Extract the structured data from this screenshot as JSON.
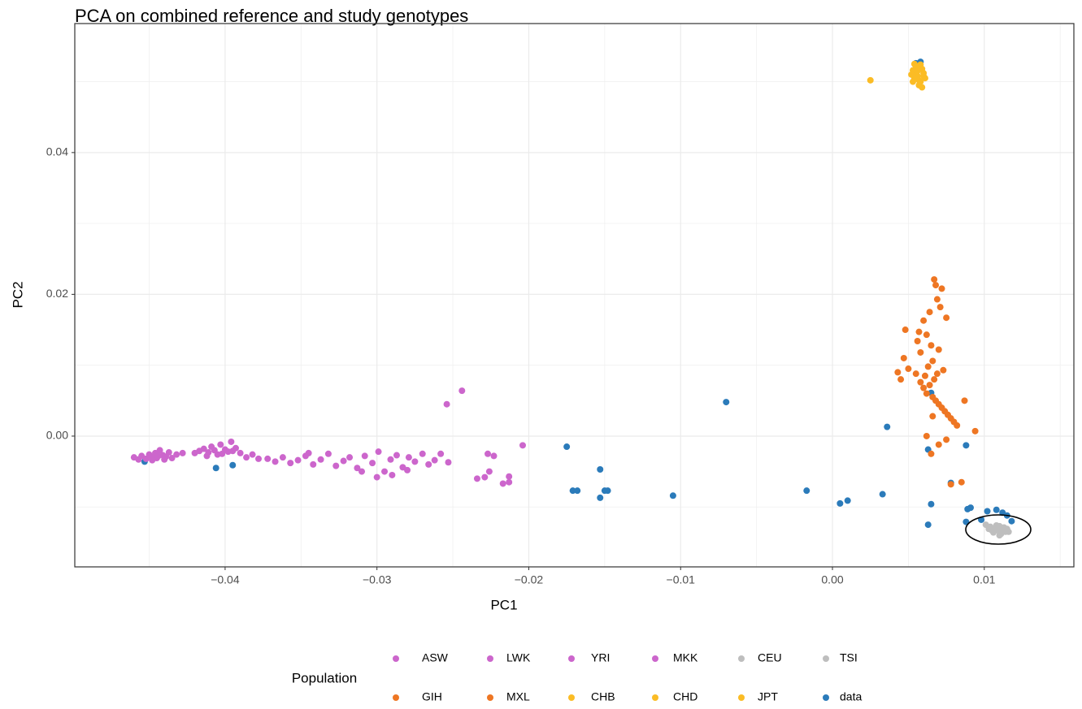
{
  "chart_data": {
    "type": "scatter",
    "title": "PCA on combined reference and study genotypes",
    "x_label": "PC1",
    "y_label": "PC2",
    "legend_title": "Population",
    "xlim": [
      -0.0499,
      0.0159
    ],
    "ylim": [
      -0.01845,
      0.0582
    ],
    "xticks": [
      {
        "value": -0.04,
        "label": "−0.04"
      },
      {
        "value": -0.03,
        "label": "−0.03"
      },
      {
        "value": -0.02,
        "label": "−0.02"
      },
      {
        "value": -0.01,
        "label": "−0.01"
      },
      {
        "value": 0,
        "label": "0.00"
      },
      0.01
    ],
    "yticks": [
      {
        "value": 0,
        "label": "0.00"
      },
      0.02,
      0.04
    ],
    "x_minor_ticks": [
      -0.045,
      -0.035,
      -0.025,
      -0.015,
      -0.005,
      0.005,
      0.015
    ],
    "y_minor_ticks": [
      -0.01,
      0.01,
      0.03,
      0.05
    ],
    "grid": true,
    "legend_position": "bottom",
    "series": [
      {
        "name": "ASW",
        "color": "#cc66cc",
        "x": [
          -0.0254,
          -0.0244,
          -0.0227,
          -0.0223,
          -0.0234,
          -0.0229,
          -0.0217,
          -0.0204,
          -0.0226,
          -0.0213,
          -0.0213,
          -0.0253,
          -0.0258
        ],
        "y": [
          0.0045,
          0.0064,
          -0.0025,
          -0.0028,
          -0.006,
          -0.0058,
          -0.0067,
          -0.0013,
          -0.005,
          -0.0057,
          -0.0065,
          -0.0037,
          -0.0025
        ]
      },
      {
        "name": "LWK",
        "color": "#cc66cc",
        "x": [
          -0.046,
          -0.0457,
          -0.0455,
          -0.0452,
          -0.045,
          -0.0448,
          -0.0446,
          -0.0445,
          -0.0443,
          -0.0441,
          -0.0439,
          -0.0437,
          -0.0435,
          -0.0432,
          -0.0428,
          -0.0448,
          -0.0444,
          -0.044
        ],
        "y": [
          -0.003,
          -0.0033,
          -0.0028,
          -0.0032,
          -0.0026,
          -0.003,
          -0.0024,
          -0.0031,
          -0.002,
          -0.0027,
          -0.0029,
          -0.0023,
          -0.0031,
          -0.0026,
          -0.0024,
          -0.0034,
          -0.0028,
          -0.0033
        ]
      },
      {
        "name": "YRI",
        "color": "#cc66cc",
        "x": [
          -0.042,
          -0.0417,
          -0.0414,
          -0.0411,
          -0.0409,
          -0.0407,
          -0.0405,
          -0.0403,
          -0.04,
          -0.0398,
          -0.0396,
          -0.0393,
          -0.039,
          -0.0386,
          -0.0382,
          -0.0378,
          -0.0412,
          -0.0402,
          -0.0395
        ],
        "y": [
          -0.0024,
          -0.0021,
          -0.0018,
          -0.0023,
          -0.0015,
          -0.002,
          -0.0026,
          -0.0012,
          -0.0019,
          -0.0022,
          -0.0008,
          -0.0017,
          -0.0024,
          -0.003,
          -0.0026,
          -0.0032,
          -0.0028,
          -0.0025,
          -0.0021
        ]
      },
      {
        "name": "MKK",
        "color": "#cc66cc",
        "x": [
          -0.0372,
          -0.0367,
          -0.0362,
          -0.0357,
          -0.0352,
          -0.0347,
          -0.0342,
          -0.0337,
          -0.0332,
          -0.0327,
          -0.0322,
          -0.0318,
          -0.0313,
          -0.0308,
          -0.0303,
          -0.0299,
          -0.0295,
          -0.0291,
          -0.0287,
          -0.0283,
          -0.0279,
          -0.0275,
          -0.027,
          -0.0266,
          -0.0262,
          -0.03,
          -0.029,
          -0.028,
          -0.031,
          -0.0345
        ],
        "y": [
          -0.0032,
          -0.0036,
          -0.003,
          -0.0038,
          -0.0034,
          -0.0028,
          -0.004,
          -0.0033,
          -0.0025,
          -0.0042,
          -0.0035,
          -0.003,
          -0.0045,
          -0.0028,
          -0.0038,
          -0.0022,
          -0.005,
          -0.0033,
          -0.0027,
          -0.0044,
          -0.003,
          -0.0036,
          -0.0025,
          -0.004,
          -0.0034,
          -0.0058,
          -0.0055,
          -0.0048,
          -0.005,
          -0.0024
        ]
      },
      {
        "name": "CEU",
        "color": "#bebebe",
        "x": [
          0.0101,
          0.0104,
          0.0107,
          0.011,
          0.0112,
          0.0114,
          0.0106,
          0.0109
        ],
        "y": [
          -0.0125,
          -0.0128,
          -0.013,
          -0.0127,
          -0.0132,
          -0.0135,
          -0.0136,
          -0.0133
        ]
      },
      {
        "name": "TSI",
        "color": "#bebebe",
        "x": [
          0.0103,
          0.0105,
          0.0108,
          0.0111,
          0.0113,
          0.0115,
          0.0116,
          0.011
        ],
        "y": [
          -0.0131,
          -0.0133,
          -0.0126,
          -0.0138,
          -0.0129,
          -0.0131,
          -0.0135,
          -0.014
        ]
      },
      {
        "name": "GIH",
        "color": "#ee7623",
        "x": [
          0.0067,
          0.0068,
          0.0072,
          0.0069,
          0.0064,
          0.0071,
          0.0075,
          0.006,
          0.0057,
          0.0056,
          0.0062,
          0.0065,
          0.0058,
          0.007,
          0.0066,
          0.0063,
          0.0073,
          0.0069,
          0.0061,
          0.0067
        ],
        "y": [
          0.0221,
          0.0213,
          0.0208,
          0.0193,
          0.0175,
          0.0182,
          0.0167,
          0.0163,
          0.0147,
          0.0134,
          0.0143,
          0.0128,
          0.0118,
          0.0122,
          0.0106,
          0.0098,
          0.0093,
          0.0088,
          0.0085,
          0.008
        ]
      },
      {
        "name": "MXL",
        "color": "#ee7623",
        "x": [
          0.0048,
          0.0047,
          0.0043,
          0.0045,
          0.005,
          0.0055,
          0.0058,
          0.006,
          0.0062,
          0.0064,
          0.0066,
          0.0068,
          0.007,
          0.0072,
          0.0074,
          0.0076,
          0.0078,
          0.008,
          0.0082,
          0.0062,
          0.0065,
          0.007,
          0.0087,
          0.0094,
          0.0066,
          0.0075,
          0.0085,
          0.0078
        ],
        "y": [
          0.015,
          0.011,
          0.009,
          0.008,
          0.0095,
          0.0088,
          0.0076,
          0.0068,
          0.006,
          0.0072,
          0.0055,
          0.005,
          0.0045,
          0.004,
          0.0035,
          0.003,
          0.0025,
          0.002,
          0.0015,
          0,
          -0.0025,
          -0.0012,
          0.005,
          0.0007,
          0.0028,
          -0.0005,
          -0.0065,
          -0.0068
        ]
      },
      {
        "name": "CHB",
        "color": "#fbbc25",
        "x": [
          0.0052,
          0.0054,
          0.0056,
          0.0058,
          0.006,
          0.0055,
          0.0057
        ],
        "y": [
          0.051,
          0.0505,
          0.0515,
          0.05,
          0.0512,
          0.052,
          0.0495
        ]
      },
      {
        "name": "CHD",
        "color": "#fbbc25",
        "x": [
          0.0025,
          0.0053,
          0.0056,
          0.0059,
          0.0061,
          0.0054
        ],
        "y": [
          0.0502,
          0.05,
          0.0508,
          0.0518,
          0.0505,
          0.0525
        ]
      },
      {
        "name": "JPT",
        "color": "#fbbc25",
        "x": [
          0.0055,
          0.0057,
          0.0058,
          0.006,
          0.0053,
          0.0059
        ],
        "y": [
          0.0514,
          0.0502,
          0.0524,
          0.0508,
          0.0516,
          0.0492
        ]
      },
      {
        "name": "data",
        "color": "#2b7bba",
        "x": [
          -0.0453,
          -0.0406,
          -0.0395,
          -0.0175,
          -0.0171,
          -0.0168,
          -0.0153,
          -0.0153,
          -0.015,
          -0.0148,
          -0.0105,
          -0.007,
          -0.0017,
          0.0005,
          0.001,
          0.0033,
          0.0036,
          0.0065,
          0.0063,
          0.0088,
          0.0065,
          0.0078,
          0.0063,
          0.0089,
          0.0091,
          0.0088,
          0.0102,
          0.0108,
          0.0112,
          0.0115,
          0.0098,
          0.0118,
          0.0055,
          0.0058
        ],
        "y": [
          -0.0036,
          -0.0045,
          -0.0041,
          -0.0015,
          -0.0077,
          -0.0077,
          -0.0047,
          -0.0087,
          -0.0077,
          -0.0077,
          -0.0084,
          0.0048,
          -0.0077,
          -0.0095,
          -0.0091,
          -0.0082,
          0.0013,
          -0.0096,
          -0.0019,
          -0.0013,
          0.0061,
          -0.0066,
          -0.0125,
          -0.0103,
          -0.0101,
          -0.0121,
          -0.0106,
          -0.0104,
          -0.0108,
          -0.0112,
          -0.0118,
          -0.012,
          0.0526,
          0.0528
        ]
      }
    ]
  }
}
